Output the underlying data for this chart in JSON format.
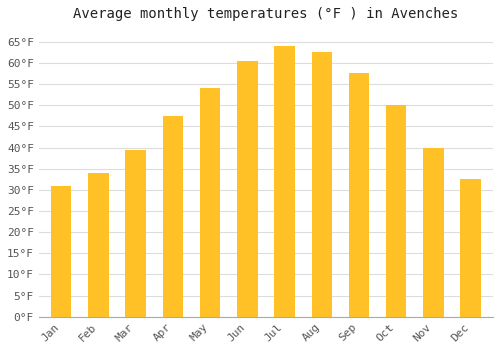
{
  "title": "Average monthly temperatures (°F ) in Avenches",
  "months": [
    "Jan",
    "Feb",
    "Mar",
    "Apr",
    "May",
    "Jun",
    "Jul",
    "Aug",
    "Sep",
    "Oct",
    "Nov",
    "Dec"
  ],
  "values": [
    31,
    34,
    39.5,
    47.5,
    54,
    60.5,
    64,
    62.5,
    57.5,
    50,
    40,
    32.5
  ],
  "bar_color_top": "#FFC125",
  "bar_color_bottom": "#FFB000",
  "bar_edge_color": "none",
  "background_color": "#FFFFFF",
  "grid_color": "#DDDDDD",
  "yticks": [
    0,
    5,
    10,
    15,
    20,
    25,
    30,
    35,
    40,
    45,
    50,
    55,
    60,
    65
  ],
  "ylim": [
    0,
    68
  ],
  "title_fontsize": 10,
  "tick_fontsize": 8,
  "bar_width": 0.55,
  "font_family": "monospace"
}
